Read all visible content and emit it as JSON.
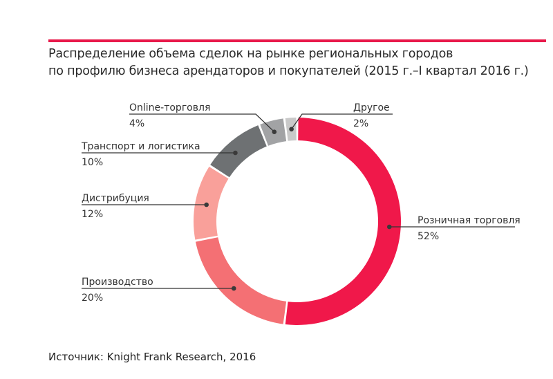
{
  "title": {
    "line1": "Распределение объема сделок на рынке региональных городов",
    "line2": "по профилю бизнеса арендаторов и покупателей (2015 г.–I квартал 2016 г.)"
  },
  "source": "Источник: Knight Frank Research, 2016",
  "colors": {
    "accent": "#e8194a"
  },
  "chart_data": {
    "type": "pie",
    "style": "donut",
    "title": "Распределение объема сделок на рынке региональных городов по профилю бизнеса арендаторов и покупателей (2015 г.–I квартал 2016 г.)",
    "start": "top",
    "direction": "clockwise",
    "slices": [
      {
        "label": "Розничная торговля",
        "value": 52,
        "value_label": "52%",
        "color": "#f0184a"
      },
      {
        "label": "Производство",
        "value": 20,
        "value_label": "20%",
        "color": "#f47074"
      },
      {
        "label": "Дистрибуция",
        "value": 12,
        "value_label": "12%",
        "color": "#f9a09a"
      },
      {
        "label": "Транспорт и логистика",
        "value": 10,
        "value_label": "10%",
        "color": "#6e7173"
      },
      {
        "label": "Online-торговля",
        "value": 4,
        "value_label": "4%",
        "color": "#a2a3a5"
      },
      {
        "label": "Другое",
        "value": 2,
        "value_label": "2%",
        "color": "#c9c9c9"
      }
    ]
  }
}
